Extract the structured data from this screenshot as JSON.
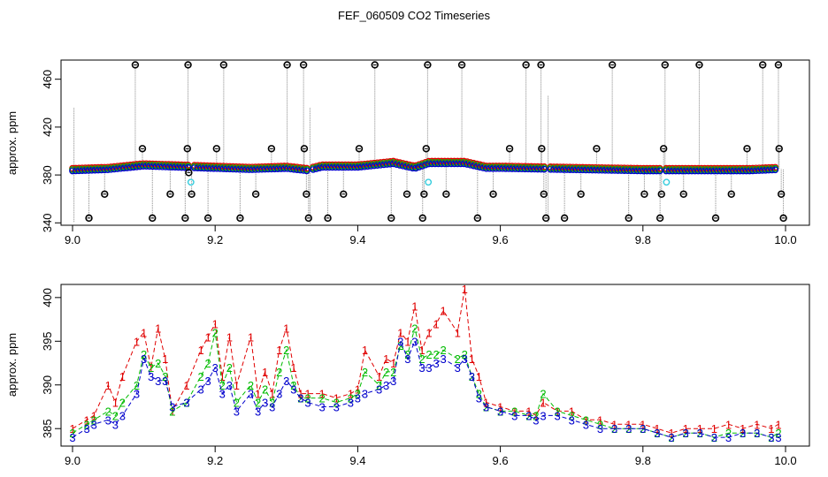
{
  "title": "FEF_060509  CO2 Timeseries",
  "colors": {
    "series1": "#e00000",
    "series2": "#00bb00",
    "series3": "#0000cc",
    "outlier": "#000000",
    "flagged": "#33ccdd",
    "gapline": "#888888"
  },
  "chart_data": [
    {
      "type": "scatter",
      "name": "top-panel",
      "title": "FEF_060509  CO2 Timeseries",
      "xlabel": "",
      "ylabel": "approx. ppm",
      "xlim": [
        9.0,
        10.0
      ],
      "ylim": [
        338,
        476
      ],
      "xticks": [
        9.0,
        9.2,
        9.4,
        9.6,
        9.8,
        10.0
      ],
      "xtick_labels": [
        "9.0",
        "9.2",
        "9.4",
        "9.6",
        "9.8",
        "10.0"
      ],
      "yticks": [
        340,
        380,
        420,
        460
      ],
      "ytick_labels": [
        "340",
        "380",
        "420",
        "460"
      ],
      "baseline": [
        [
          9.0,
          384
        ],
        [
          9.05,
          385
        ],
        [
          9.1,
          388
        ],
        [
          9.15,
          387
        ],
        [
          9.2,
          386
        ],
        [
          9.25,
          385
        ],
        [
          9.3,
          386
        ],
        [
          9.33,
          384
        ],
        [
          9.35,
          387
        ],
        [
          9.4,
          387
        ],
        [
          9.45,
          390
        ],
        [
          9.48,
          386
        ],
        [
          9.5,
          390
        ],
        [
          9.55,
          390
        ],
        [
          9.58,
          386
        ],
        [
          9.6,
          386
        ],
        [
          9.7,
          385
        ],
        [
          9.8,
          384
        ],
        [
          9.82,
          384
        ],
        [
          9.85,
          384
        ],
        [
          9.9,
          384
        ],
        [
          9.95,
          384
        ],
        [
          9.99,
          385
        ]
      ],
      "outliers": [
        {
          "x": 9.023,
          "y": 344
        },
        {
          "x": 9.045,
          "y": 364
        },
        {
          "x": 9.088,
          "y": 472
        },
        {
          "x": 9.098,
          "y": 402
        },
        {
          "x": 9.112,
          "y": 344
        },
        {
          "x": 9.137,
          "y": 364
        },
        {
          "x": 9.158,
          "y": 344
        },
        {
          "x": 9.161,
          "y": 402
        },
        {
          "x": 9.162,
          "y": 472
        },
        {
          "x": 9.163,
          "y": 382
        },
        {
          "x": 9.167,
          "y": 364
        },
        {
          "x": 9.19,
          "y": 344
        },
        {
          "x": 9.202,
          "y": 402
        },
        {
          "x": 9.212,
          "y": 472
        },
        {
          "x": 9.235,
          "y": 344
        },
        {
          "x": 9.257,
          "y": 364
        },
        {
          "x": 9.279,
          "y": 402
        },
        {
          "x": 9.301,
          "y": 472
        },
        {
          "x": 9.324,
          "y": 472
        },
        {
          "x": 9.325,
          "y": 402
        },
        {
          "x": 9.328,
          "y": 364
        },
        {
          "x": 9.331,
          "y": 344
        },
        {
          "x": 9.358,
          "y": 344
        },
        {
          "x": 9.38,
          "y": 364
        },
        {
          "x": 9.402,
          "y": 402
        },
        {
          "x": 9.424,
          "y": 472
        },
        {
          "x": 9.447,
          "y": 344
        },
        {
          "x": 9.469,
          "y": 364
        },
        {
          "x": 9.491,
          "y": 344
        },
        {
          "x": 9.493,
          "y": 364
        },
        {
          "x": 9.496,
          "y": 402
        },
        {
          "x": 9.498,
          "y": 472
        },
        {
          "x": 9.524,
          "y": 364
        },
        {
          "x": 9.546,
          "y": 472
        },
        {
          "x": 9.568,
          "y": 344
        },
        {
          "x": 9.59,
          "y": 364
        },
        {
          "x": 9.613,
          "y": 402
        },
        {
          "x": 9.636,
          "y": 472
        },
        {
          "x": 9.657,
          "y": 472
        },
        {
          "x": 9.658,
          "y": 402
        },
        {
          "x": 9.661,
          "y": 364
        },
        {
          "x": 9.664,
          "y": 344
        },
        {
          "x": 9.69,
          "y": 344
        },
        {
          "x": 9.713,
          "y": 364
        },
        {
          "x": 9.735,
          "y": 402
        },
        {
          "x": 9.757,
          "y": 472
        },
        {
          "x": 9.78,
          "y": 344
        },
        {
          "x": 9.802,
          "y": 364
        },
        {
          "x": 9.824,
          "y": 344
        },
        {
          "x": 9.826,
          "y": 364
        },
        {
          "x": 9.829,
          "y": 402
        },
        {
          "x": 9.831,
          "y": 472
        },
        {
          "x": 9.857,
          "y": 364
        },
        {
          "x": 9.879,
          "y": 472
        },
        {
          "x": 9.902,
          "y": 344
        },
        {
          "x": 9.924,
          "y": 364
        },
        {
          "x": 9.946,
          "y": 402
        },
        {
          "x": 9.968,
          "y": 472
        },
        {
          "x": 9.99,
          "y": 472
        },
        {
          "x": 9.991,
          "y": 402
        },
        {
          "x": 9.994,
          "y": 364
        },
        {
          "x": 9.997,
          "y": 344
        }
      ],
      "flagged": [
        {
          "x": 9.166,
          "y": 374
        },
        {
          "x": 9.499,
          "y": 374
        },
        {
          "x": 9.833,
          "y": 374
        }
      ]
    },
    {
      "type": "line",
      "name": "bottom-panel",
      "xlabel": "",
      "ylabel": "approx. ppm",
      "xlim": [
        9.0,
        10.0
      ],
      "ylim": [
        383,
        401.5
      ],
      "xticks": [
        9.0,
        9.2,
        9.4,
        9.6,
        9.8,
        10.0
      ],
      "xtick_labels": [
        "9.0",
        "9.2",
        "9.4",
        "9.6",
        "9.8",
        "10.0"
      ],
      "yticks": [
        385,
        390,
        395,
        400
      ],
      "ytick_labels": [
        "385",
        "390",
        "395",
        "400"
      ],
      "series": [
        {
          "name": "1",
          "marker": "1",
          "x": [
            9.0,
            9.02,
            9.03,
            9.05,
            9.06,
            9.07,
            9.09,
            9.1,
            9.11,
            9.12,
            9.13,
            9.14,
            9.16,
            9.18,
            9.19,
            9.2,
            9.21,
            9.22,
            9.23,
            9.25,
            9.26,
            9.27,
            9.28,
            9.29,
            9.3,
            9.31,
            9.32,
            9.33,
            9.35,
            9.37,
            9.39,
            9.4,
            9.41,
            9.43,
            9.44,
            9.45,
            9.46,
            9.47,
            9.48,
            9.49,
            9.5,
            9.51,
            9.52,
            9.54,
            9.55,
            9.56,
            9.57,
            9.58,
            9.6,
            9.62,
            9.64,
            9.65,
            9.66,
            9.68,
            9.7,
            9.72,
            9.74,
            9.76,
            9.78,
            9.8,
            9.82,
            9.84,
            9.86,
            9.88,
            9.9,
            9.92,
            9.94,
            9.96,
            9.98,
            9.99
          ],
          "y": [
            385.0,
            386.0,
            386.5,
            390.0,
            388.0,
            391.0,
            395.0,
            396.0,
            392.0,
            396.5,
            393.0,
            387.0,
            390.0,
            394.0,
            395.5,
            397.0,
            391.0,
            395.5,
            390.0,
            395.5,
            389.0,
            391.5,
            389.0,
            394.0,
            396.5,
            392.0,
            389.0,
            389.0,
            389.0,
            388.5,
            389.0,
            389.5,
            394.0,
            391.0,
            393.0,
            392.5,
            396.0,
            395.0,
            399.0,
            394.0,
            396.0,
            397.0,
            398.5,
            396.0,
            401.0,
            393.0,
            391.0,
            388.0,
            387.5,
            387.0,
            387.0,
            386.5,
            388.0,
            387.0,
            387.0,
            386.0,
            386.0,
            385.5,
            385.5,
            385.5,
            385.0,
            384.5,
            385.0,
            385.0,
            385.0,
            385.5,
            385.0,
            385.5,
            385.0,
            385.5
          ]
        },
        {
          "name": "2",
          "marker": "2",
          "x": [
            9.0,
            9.02,
            9.03,
            9.05,
            9.06,
            9.07,
            9.09,
            9.1,
            9.11,
            9.12,
            9.13,
            9.14,
            9.16,
            9.18,
            9.19,
            9.2,
            9.21,
            9.22,
            9.23,
            9.25,
            9.26,
            9.27,
            9.28,
            9.29,
            9.3,
            9.31,
            9.32,
            9.33,
            9.35,
            9.37,
            9.39,
            9.4,
            9.41,
            9.43,
            9.44,
            9.45,
            9.46,
            9.47,
            9.48,
            9.49,
            9.5,
            9.51,
            9.52,
            9.54,
            9.55,
            9.56,
            9.57,
            9.58,
            9.6,
            9.62,
            9.64,
            9.65,
            9.66,
            9.68,
            9.7,
            9.72,
            9.74,
            9.76,
            9.78,
            9.8,
            9.82,
            9.84,
            9.86,
            9.88,
            9.9,
            9.92,
            9.94,
            9.96,
            9.98,
            9.99
          ],
          "y": [
            384.5,
            385.5,
            386.0,
            387.0,
            386.5,
            388.0,
            390.0,
            393.5,
            392.0,
            392.5,
            391.0,
            387.0,
            388.0,
            391.0,
            392.5,
            396.0,
            390.0,
            392.0,
            388.0,
            390.0,
            388.0,
            389.5,
            388.0,
            391.5,
            394.0,
            390.0,
            388.5,
            388.5,
            388.5,
            388.0,
            388.5,
            389.0,
            391.5,
            390.0,
            391.5,
            391.5,
            394.5,
            393.5,
            396.5,
            393.0,
            393.5,
            393.5,
            394.0,
            393.0,
            393.5,
            391.0,
            389.0,
            387.5,
            387.0,
            387.0,
            386.5,
            386.5,
            389.0,
            387.0,
            386.5,
            386.0,
            385.5,
            385.0,
            385.0,
            385.0,
            384.5,
            384.0,
            384.5,
            384.5,
            384.0,
            384.5,
            384.5,
            384.5,
            384.0,
            384.5
          ]
        },
        {
          "name": "3",
          "marker": "3",
          "x": [
            9.0,
            9.02,
            9.03,
            9.05,
            9.06,
            9.07,
            9.09,
            9.1,
            9.11,
            9.12,
            9.13,
            9.14,
            9.16,
            9.18,
            9.19,
            9.2,
            9.21,
            9.22,
            9.23,
            9.25,
            9.26,
            9.27,
            9.28,
            9.29,
            9.3,
            9.31,
            9.32,
            9.33,
            9.35,
            9.37,
            9.39,
            9.4,
            9.41,
            9.43,
            9.44,
            9.45,
            9.46,
            9.47,
            9.48,
            9.49,
            9.5,
            9.51,
            9.52,
            9.54,
            9.55,
            9.56,
            9.57,
            9.58,
            9.6,
            9.62,
            9.64,
            9.65,
            9.66,
            9.68,
            9.7,
            9.72,
            9.74,
            9.76,
            9.78,
            9.8,
            9.82,
            9.84,
            9.86,
            9.88,
            9.9,
            9.92,
            9.94,
            9.96,
            9.98,
            9.99
          ],
          "y": [
            384.0,
            385.0,
            385.5,
            386.0,
            385.5,
            386.5,
            389.0,
            393.0,
            391.0,
            390.5,
            390.5,
            387.5,
            388.0,
            389.5,
            390.5,
            392.0,
            389.0,
            390.0,
            387.0,
            389.0,
            387.0,
            388.0,
            387.5,
            389.0,
            390.5,
            389.5,
            388.5,
            388.0,
            387.5,
            387.5,
            388.0,
            388.5,
            389.0,
            389.5,
            390.0,
            390.5,
            395.0,
            393.0,
            395.0,
            392.0,
            392.0,
            392.5,
            393.0,
            392.0,
            393.0,
            391.0,
            388.5,
            387.5,
            387.0,
            386.5,
            386.5,
            386.0,
            386.5,
            386.5,
            386.0,
            385.5,
            385.0,
            385.0,
            385.0,
            385.0,
            384.5,
            384.0,
            384.5,
            384.5,
            384.0,
            384.0,
            384.5,
            384.5,
            384.0,
            384.0
          ]
        }
      ]
    }
  ]
}
